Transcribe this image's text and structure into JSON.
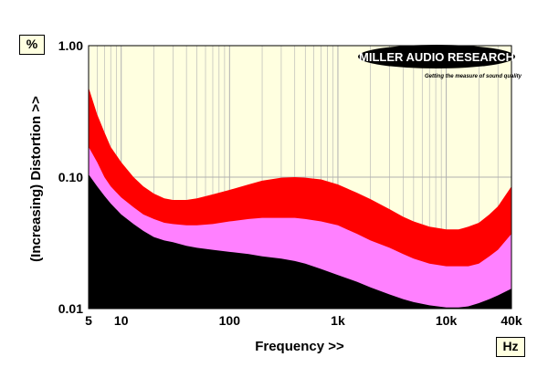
{
  "chart_data": {
    "type": "area",
    "xlabel": "Frequency >>",
    "ylabel": "(Increasing) Distortion >>",
    "x_unit": "Hz",
    "y_unit": "%",
    "xscale": "log",
    "yscale": "log",
    "xlim": [
      5,
      40000
    ],
    "ylim": [
      0.01,
      1.0
    ],
    "x_ticks": [
      {
        "value": 5,
        "label": "5"
      },
      {
        "value": 10,
        "label": "10"
      },
      {
        "value": 100,
        "label": "100"
      },
      {
        "value": 1000,
        "label": "1k"
      },
      {
        "value": 10000,
        "label": "10k"
      },
      {
        "value": 40000,
        "label": "40k"
      }
    ],
    "y_ticks": [
      {
        "value": 1.0,
        "label": "1.00"
      },
      {
        "value": 0.1,
        "label": "0.10"
      },
      {
        "value": 0.01,
        "label": "0.01"
      }
    ],
    "grid": true,
    "series": [
      {
        "color": "#ff0000",
        "x": [
          5,
          6,
          7,
          8,
          10,
          13,
          16,
          20,
          25,
          30,
          40,
          50,
          70,
          100,
          150,
          200,
          300,
          400,
          500,
          700,
          1000,
          1500,
          2000,
          3000,
          4000,
          5000,
          7000,
          10000,
          13000,
          16000,
          20000,
          25000,
          30000,
          40000
        ],
        "values": [
          0.48,
          0.3,
          0.22,
          0.17,
          0.13,
          0.1,
          0.085,
          0.075,
          0.069,
          0.067,
          0.067,
          0.069,
          0.074,
          0.08,
          0.088,
          0.094,
          0.099,
          0.1,
          0.099,
          0.096,
          0.088,
          0.076,
          0.068,
          0.057,
          0.05,
          0.046,
          0.042,
          0.04,
          0.04,
          0.042,
          0.045,
          0.052,
          0.06,
          0.085
        ]
      },
      {
        "color": "#ff80ff",
        "x": [
          5,
          6,
          7,
          8,
          10,
          13,
          16,
          20,
          25,
          30,
          40,
          50,
          70,
          100,
          150,
          200,
          300,
          400,
          500,
          700,
          1000,
          1500,
          2000,
          3000,
          4000,
          5000,
          7000,
          10000,
          13000,
          16000,
          20000,
          25000,
          30000,
          40000
        ],
        "values": [
          0.17,
          0.13,
          0.1,
          0.085,
          0.07,
          0.059,
          0.052,
          0.048,
          0.045,
          0.044,
          0.043,
          0.043,
          0.044,
          0.046,
          0.048,
          0.049,
          0.049,
          0.049,
          0.048,
          0.046,
          0.043,
          0.037,
          0.033,
          0.029,
          0.026,
          0.024,
          0.022,
          0.021,
          0.021,
          0.021,
          0.022,
          0.025,
          0.028,
          0.037
        ]
      },
      {
        "color": "#000000",
        "x": [
          5,
          6,
          7,
          8,
          10,
          13,
          16,
          20,
          25,
          30,
          40,
          50,
          70,
          100,
          150,
          200,
          300,
          400,
          500,
          700,
          1000,
          1500,
          2000,
          3000,
          4000,
          5000,
          7000,
          10000,
          13000,
          16000,
          20000,
          25000,
          30000,
          40000
        ],
        "values": [
          0.105,
          0.085,
          0.072,
          0.063,
          0.052,
          0.044,
          0.039,
          0.035,
          0.033,
          0.032,
          0.03,
          0.029,
          0.028,
          0.027,
          0.026,
          0.025,
          0.024,
          0.023,
          0.022,
          0.02,
          0.018,
          0.016,
          0.0145,
          0.0128,
          0.0118,
          0.0112,
          0.0106,
          0.0102,
          0.0102,
          0.0104,
          0.011,
          0.0118,
          0.0126,
          0.0142
        ]
      }
    ]
  },
  "logo": {
    "name": "MILLER AUDIO RESEARCH",
    "tagline": "Getting the measure of sound quality"
  },
  "colors": {
    "plot_background": "#ffffe0",
    "gridline": "#b0b0b0"
  }
}
